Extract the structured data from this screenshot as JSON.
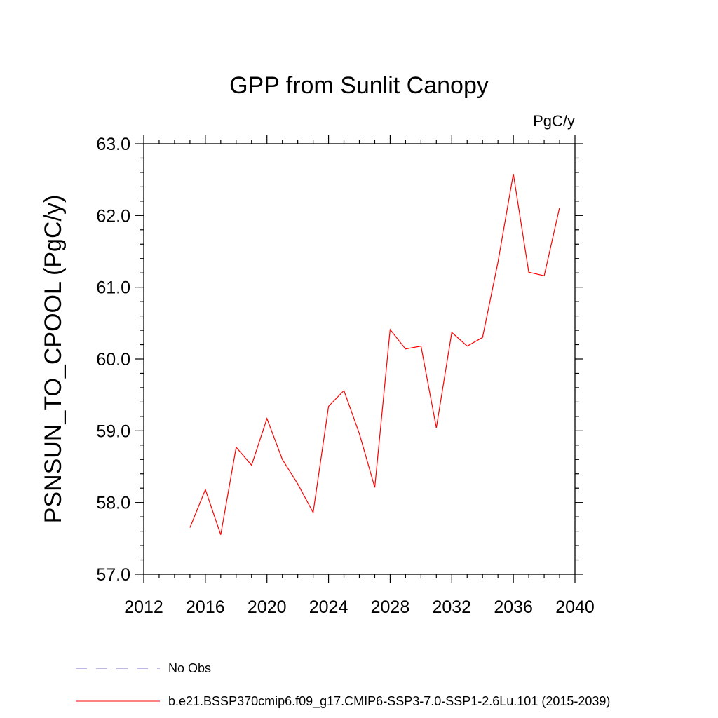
{
  "chart_data": {
    "type": "line",
    "title": "GPP from Sunlit Canopy",
    "units_label": "PgC/y",
    "ylabel": "PSNSUN_TO_CPOOL  (PgC/y)",
    "xlabel": "",
    "xlim": [
      2012,
      2040
    ],
    "ylim": [
      57.0,
      63.0
    ],
    "x_ticks": [
      2012,
      2016,
      2020,
      2024,
      2028,
      2032,
      2036,
      2040
    ],
    "y_ticks": [
      "57.0",
      "58.0",
      "59.0",
      "60.0",
      "61.0",
      "62.0",
      "63.0"
    ],
    "grid": false,
    "legend_placement": "bottom-left",
    "series": [
      {
        "name": "No Obs",
        "color": "#7b6fd6",
        "style": "dashed",
        "x": [],
        "values": []
      },
      {
        "name": "b.e21.BSSP370cmip6.f09_g17.CMIP6-SSP3-7.0-SSP1-2.6Lu.101 (2015-2039)",
        "color": "#ff0000",
        "style": "solid",
        "x": [
          2015,
          2016,
          2017,
          2018,
          2019,
          2020,
          2021,
          2022,
          2023,
          2024,
          2025,
          2026,
          2027,
          2028,
          2029,
          2030,
          2031,
          2032,
          2033,
          2034,
          2035,
          2036,
          2037,
          2038,
          2039
        ],
        "values": [
          57.65,
          58.18,
          57.55,
          58.77,
          58.52,
          59.17,
          58.6,
          58.26,
          57.86,
          59.34,
          59.56,
          58.96,
          58.21,
          60.41,
          60.14,
          60.18,
          59.04,
          60.37,
          60.18,
          60.3,
          61.35,
          62.58,
          61.21,
          61.16,
          62.11
        ]
      }
    ]
  }
}
